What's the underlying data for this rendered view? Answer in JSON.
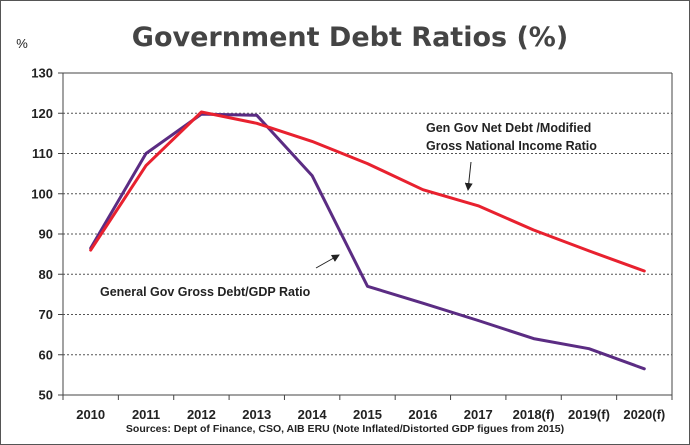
{
  "chart_data": {
    "type": "line",
    "title": "Government Debt Ratios (%)",
    "unit_label": "%",
    "source": "Sources: Dept of Finance, CSO, AIB ERU (Note Inflated/Distorted GDP figues from 2015)",
    "categories": [
      "2010",
      "2011",
      "2012",
      "2013",
      "2014",
      "2015",
      "2016",
      "2017",
      "2018(f)",
      "2019(f)",
      "2020(f)"
    ],
    "ylim": [
      50,
      130
    ],
    "yticks": [
      50,
      60,
      70,
      80,
      90,
      100,
      110,
      120,
      130
    ],
    "grid": true,
    "series": [
      {
        "name": "General Gov Gross Debt/GDP Ratio",
        "color": "#5b2c83",
        "values": [
          86.5,
          110,
          119.8,
          119.5,
          104.5,
          77,
          72.8,
          68.5,
          64,
          61.5,
          56.5
        ]
      },
      {
        "name": "Gen Gov Net Debt /Modified Gross National Income Ratio",
        "color": "#e8212f",
        "values": [
          86,
          107,
          120.3,
          117.5,
          113,
          107.5,
          101,
          97,
          91,
          85.8,
          80.8
        ]
      }
    ],
    "annotations": [
      {
        "lines": [
          "Gen Gov Net Debt /Modified",
          "Gross National Income Ratio"
        ],
        "series": 1
      },
      {
        "lines": [
          "General Gov Gross Debt/GDP Ratio"
        ],
        "series": 0
      }
    ]
  }
}
